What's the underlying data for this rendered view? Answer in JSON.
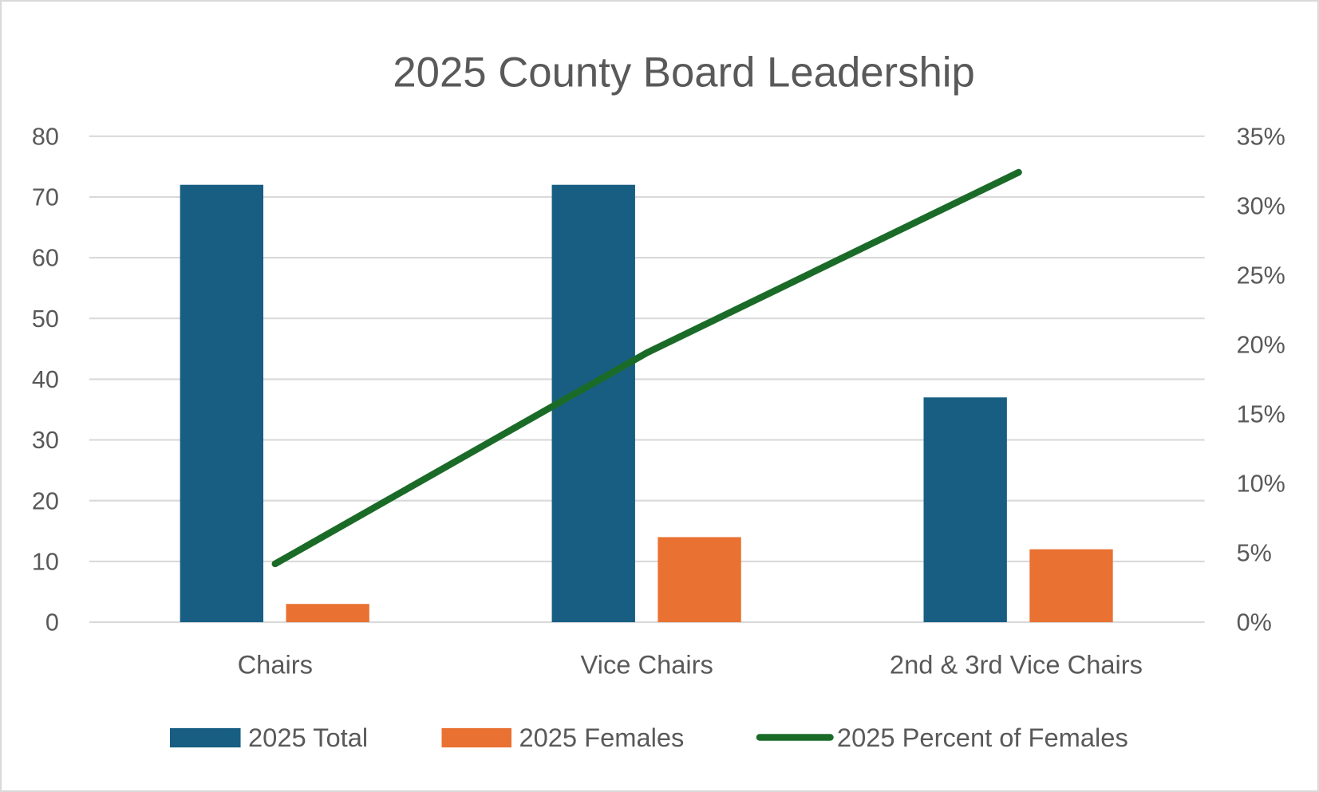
{
  "chart_data": {
    "type": "bar",
    "title": "2025 County Board Leadership",
    "categories": [
      "Chairs",
      "Vice Chairs",
      "2nd & 3rd Vice Chairs"
    ],
    "series": [
      {
        "name": "2025 Total",
        "type": "bar",
        "axis": "left",
        "color": "#175E82",
        "values": [
          72,
          72,
          37
        ]
      },
      {
        "name": "2025 Females",
        "type": "bar",
        "axis": "left",
        "color": "#E97132",
        "values": [
          3,
          14,
          12
        ]
      },
      {
        "name": "2025 Percent of Females",
        "type": "line",
        "axis": "right",
        "color": "#1B6B28",
        "values": [
          4.2,
          19.4,
          32.4
        ]
      }
    ],
    "y_left": {
      "min": 0,
      "max": 80,
      "step": 10,
      "ticks": [
        "0",
        "10",
        "20",
        "30",
        "40",
        "50",
        "60",
        "70",
        "80"
      ]
    },
    "y_right": {
      "min": 0,
      "max": 35,
      "step": 5,
      "ticks": [
        "0%",
        "5%",
        "10%",
        "15%",
        "20%",
        "25%",
        "30%",
        "35%"
      ]
    },
    "grid": true,
    "legend": "bottom"
  }
}
